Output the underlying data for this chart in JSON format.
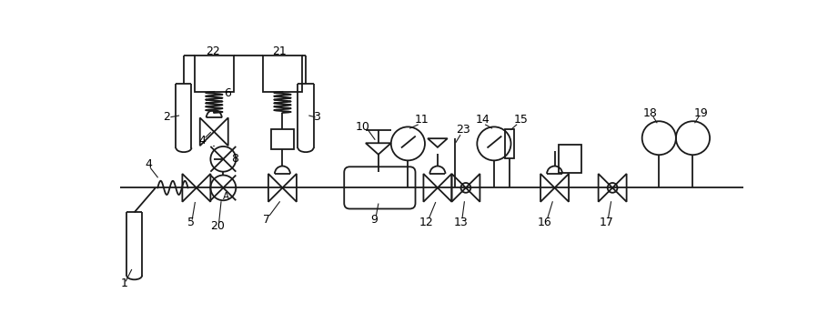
{
  "fig_width": 9.21,
  "fig_height": 3.66,
  "dpi": 100,
  "lw": 1.3,
  "lc": "#1a1a1a",
  "main_y": 0.46,
  "xlim": [
    0,
    9.21
  ],
  "ylim": [
    0,
    3.66
  ]
}
